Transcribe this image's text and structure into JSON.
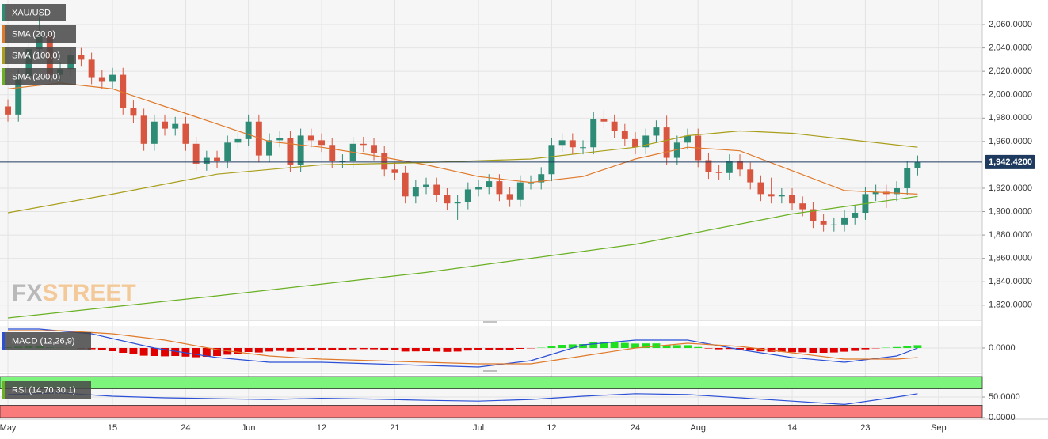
{
  "chart_data": [
    {
      "type": "candlestick",
      "name": "XAU/USD",
      "color_up": "#2e8b76",
      "color_down": "#d8563f",
      "xlim": [
        -0.76,
        93.18
      ],
      "ylim": [
        1807,
        2081
      ],
      "grid": true,
      "yticks": [
        {
          "value": 1820,
          "label": "1,820.0000"
        },
        {
          "value": 1840,
          "label": "1,840.0000"
        },
        {
          "value": 1860,
          "label": "1,860.0000"
        },
        {
          "value": 1880,
          "label": "1,880.0000"
        },
        {
          "value": 1900,
          "label": "1,900.0000"
        },
        {
          "value": 1920,
          "label": "1,920.0000"
        },
        {
          "value": 1940,
          "label": "1,940.0000"
        },
        {
          "value": 1960,
          "label": "1,960.0000"
        },
        {
          "value": 1980,
          "label": "1,980.0000"
        },
        {
          "value": 2000,
          "label": "2,000.0000"
        },
        {
          "value": 2020,
          "label": "2,020.0000"
        },
        {
          "value": 2040,
          "label": "2,040.0000"
        },
        {
          "value": 2060,
          "label": "2,060.0000"
        }
      ],
      "open": [
        1990,
        1983,
        2016,
        2039,
        2050,
        2017,
        2022,
        2034,
        2030,
        2015,
        2011,
        2017,
        1989,
        1982,
        1958,
        1977,
        1971,
        1975,
        1958,
        1941,
        1946,
        1943,
        1959,
        1962,
        1977,
        1948,
        1961,
        1963,
        1940,
        1965,
        1961,
        1957,
        1943,
        1943,
        1958,
        1957,
        1950,
        1936,
        1933,
        1913,
        1921,
        1923,
        1914,
        1907,
        1908,
        1919,
        1921,
        1926,
        1915,
        1910,
        1925,
        1925,
        1932,
        1957,
        1961,
        1955,
        1955,
        1979,
        1977,
        1969,
        1962,
        1955,
        1965,
        1972,
        1946,
        1959,
        1965,
        1944,
        1934,
        1933,
        1943,
        1936,
        1925,
        1915,
        1913,
        1914,
        1907,
        1902,
        1892,
        1889,
        1889,
        1895,
        1899,
        1915,
        1917,
        1915,
        1920,
        1937
      ],
      "high": [
        1996,
        2022,
        2045,
        2067,
        2056,
        2028,
        2040,
        2040,
        2036,
        2021,
        2023,
        2023,
        1995,
        1988,
        1983,
        1983,
        1981,
        1981,
        1964,
        1952,
        1952,
        1965,
        1968,
        1983,
        1983,
        1967,
        1969,
        1969,
        1971,
        1971,
        1967,
        1963,
        1949,
        1964,
        1964,
        1963,
        1956,
        1942,
        1939,
        1927,
        1929,
        1929,
        1920,
        1914,
        1925,
        1927,
        1932,
        1932,
        1921,
        1931,
        1931,
        1938,
        1963,
        1967,
        1967,
        1961,
        1985,
        1987,
        1983,
        1975,
        1968,
        1971,
        1978,
        1982,
        1965,
        1971,
        1971,
        1950,
        1940,
        1949,
        1949,
        1942,
        1931,
        1929,
        1920,
        1920,
        1913,
        1908,
        1898,
        1895,
        1901,
        1905,
        1921,
        1923,
        1923,
        1926,
        1943,
        1948
      ],
      "low": [
        1977,
        1977,
        2010,
        2033,
        2011,
        2011,
        2016,
        2024,
        2009,
        2005,
        2005,
        1983,
        1976,
        1952,
        1952,
        1965,
        1965,
        1952,
        1935,
        1935,
        1937,
        1937,
        1953,
        1956,
        1942,
        1942,
        1955,
        1934,
        1934,
        1955,
        1951,
        1937,
        1937,
        1937,
        1951,
        1944,
        1930,
        1927,
        1907,
        1907,
        1915,
        1908,
        1901,
        1893,
        1902,
        1913,
        1915,
        1909,
        1904,
        1904,
        1919,
        1919,
        1926,
        1951,
        1949,
        1949,
        1949,
        1971,
        1963,
        1956,
        1949,
        1949,
        1959,
        1940,
        1940,
        1953,
        1938,
        1928,
        1927,
        1927,
        1930,
        1919,
        1909,
        1907,
        1907,
        1901,
        1896,
        1886,
        1883,
        1883,
        1883,
        1889,
        1893,
        1909,
        1903,
        1909,
        1914,
        1931
      ],
      "close": [
        1983,
        2016,
        2039,
        2050,
        2017,
        2022,
        2034,
        2030,
        2015,
        2011,
        2017,
        1989,
        1982,
        1958,
        1977,
        1971,
        1975,
        1958,
        1941,
        1946,
        1943,
        1959,
        1962,
        1977,
        1948,
        1961,
        1963,
        1940,
        1965,
        1961,
        1957,
        1943,
        1943,
        1958,
        1957,
        1950,
        1936,
        1933,
        1913,
        1921,
        1923,
        1914,
        1907,
        1908,
        1919,
        1921,
        1926,
        1915,
        1910,
        1925,
        1925,
        1932,
        1957,
        1961,
        1955,
        1955,
        1979,
        1977,
        1969,
        1962,
        1955,
        1965,
        1972,
        1946,
        1959,
        1965,
        1944,
        1934,
        1933,
        1943,
        1936,
        1925,
        1915,
        1913,
        1914,
        1907,
        1902,
        1892,
        1889,
        1889,
        1895,
        1899,
        1915,
        1917,
        1915,
        1920,
        1937,
        1942.42
      ],
      "last_price": {
        "value": 1942.42,
        "label": "1,942.4200"
      },
      "series": [
        {
          "name": "SMA (20,0)",
          "color": "#e07a2b",
          "x": [
            0,
            5,
            10,
            15,
            20,
            25,
            30,
            35,
            40,
            45,
            50,
            55,
            60,
            65,
            70,
            75,
            80,
            87
          ],
          "values": [
            2005,
            2010,
            2005,
            1990,
            1975,
            1960,
            1955,
            1948,
            1940,
            1930,
            1925,
            1930,
            1945,
            1955,
            1952,
            1935,
            1918,
            1915
          ]
        },
        {
          "name": "SMA (100,0)",
          "color": "#a89e1a",
          "x": [
            0,
            10,
            20,
            30,
            40,
            50,
            60,
            65,
            70,
            75,
            80,
            87
          ],
          "values": [
            1899,
            1915,
            1932,
            1940,
            1942,
            1945,
            1955,
            1965,
            1969,
            1967,
            1962,
            1955
          ]
        },
        {
          "name": "SMA (200,0)",
          "color": "#6ab023",
          "x": [
            0,
            20,
            40,
            60,
            75,
            87
          ],
          "values": [
            1809,
            1828,
            1848,
            1872,
            1898,
            1913
          ]
        }
      ],
      "watermark": [
        "FX",
        "STREET"
      ]
    },
    {
      "type": "bar",
      "name": "MACD (12,26,9)",
      "color_up": "#1fe01f",
      "color_down": "#e00000",
      "xlim": [
        -0.76,
        93.18
      ],
      "ylim": [
        -15,
        14
      ],
      "yticks": [
        {
          "value": 0,
          "label": "0.0000"
        }
      ],
      "values": [
        0.5,
        0.8,
        1.2,
        1.0,
        0.4,
        0.2,
        0.1,
        -0.3,
        -0.8,
        -1.5,
        -2.0,
        -3.0,
        -3.8,
        -4.8,
        -5.0,
        -5.2,
        -5.0,
        -5.4,
        -5.8,
        -5.5,
        -5.0,
        -4.2,
        -3.5,
        -2.5,
        -2.8,
        -2.2,
        -1.8,
        -2.3,
        -1.2,
        -1.0,
        -1.0,
        -1.3,
        -1.4,
        -0.8,
        -0.7,
        -0.8,
        -1.2,
        -1.5,
        -2.2,
        -2.1,
        -2.0,
        -2.2,
        -2.4,
        -2.2,
        -1.6,
        -1.3,
        -1.0,
        -1.0,
        -1.0,
        -0.5,
        -0.2,
        0.2,
        1.2,
        2.0,
        2.3,
        2.5,
        3.5,
        3.8,
        3.6,
        3.2,
        2.8,
        2.9,
        2.9,
        1.8,
        1.8,
        1.8,
        0.6,
        -0.3,
        -0.8,
        -0.6,
        -0.9,
        -1.5,
        -2.1,
        -2.4,
        -2.4,
        -2.6,
        -2.7,
        -3.0,
        -3.0,
        -2.8,
        -2.3,
        -1.8,
        -0.8,
        -0.2,
        0.2,
        0.6,
        1.4,
        1.8
      ],
      "series": [
        {
          "color": "#2b4fd6",
          "x": [
            0,
            3,
            8,
            14,
            20,
            25,
            30,
            35,
            40,
            45,
            50,
            55,
            60,
            65,
            70,
            75,
            80,
            85,
            87
          ],
          "values": [
            12,
            12,
            9,
            0,
            -6,
            -9,
            -9,
            -10,
            -11,
            -12,
            -8,
            2,
            5,
            5,
            -1,
            -6,
            -9,
            -5,
            0
          ]
        },
        {
          "color": "#e07a2b",
          "x": [
            0,
            5,
            10,
            15,
            20,
            25,
            30,
            35,
            40,
            45,
            50,
            55,
            60,
            65,
            70,
            75,
            80,
            85,
            87
          ],
          "values": [
            11,
            11,
            9,
            5,
            -1,
            -5,
            -7,
            -8,
            -9,
            -10,
            -10,
            -5,
            0,
            3,
            1,
            -3,
            -7,
            -7,
            -6
          ]
        }
      ]
    },
    {
      "type": "line",
      "name": "RSI (14,70,30,1)",
      "xlim": [
        -0.76,
        93.18
      ],
      "ylim": [
        0,
        100
      ],
      "yticks": [
        {
          "value": 50,
          "label": "50.0000"
        },
        {
          "value": 0,
          "label": "0.0000"
        }
      ],
      "bands": [
        {
          "from": 70,
          "to": 100,
          "color": "#7df57d"
        },
        {
          "from": 0,
          "to": 30,
          "color": "#fa7b7b"
        }
      ],
      "xticks": [
        {
          "value": 0,
          "label": "May"
        },
        {
          "value": 10,
          "label": "15"
        },
        {
          "value": 17,
          "label": "24"
        },
        {
          "value": 23,
          "label": "Jun"
        },
        {
          "value": 30,
          "label": "12"
        },
        {
          "value": 37,
          "label": "21"
        },
        {
          "value": 45,
          "label": "Jul"
        },
        {
          "value": 52,
          "label": "12"
        },
        {
          "value": 60,
          "label": "24"
        },
        {
          "value": 66,
          "label": "Aug"
        },
        {
          "value": 75,
          "label": "14"
        },
        {
          "value": 82,
          "label": "23"
        },
        {
          "value": 89,
          "label": "Sep"
        }
      ],
      "series": [
        {
          "color": "#2b4fd6",
          "x": [
            0,
            5,
            10,
            15,
            20,
            25,
            30,
            35,
            40,
            45,
            50,
            55,
            60,
            65,
            70,
            75,
            80,
            85,
            87
          ],
          "values": [
            56,
            60,
            52,
            48,
            46,
            44,
            47,
            45,
            42,
            40,
            44,
            52,
            58,
            56,
            48,
            40,
            32,
            50,
            58
          ]
        }
      ]
    }
  ]
}
